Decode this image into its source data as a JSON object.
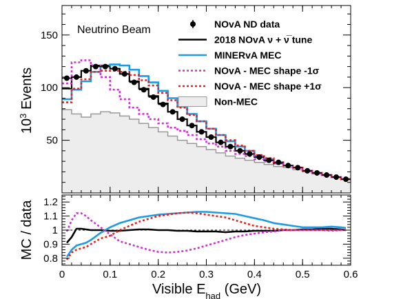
{
  "chart_data": [
    {
      "type": "line",
      "panel": "top",
      "annotation": "Neutrino Beam",
      "xlabel": "",
      "ylabel_base": "10",
      "ylabel_exp": "3",
      "ylabel_rest": " Events",
      "xlim": [
        0,
        0.6
      ],
      "ylim": [
        0,
        178
      ],
      "xticks": [
        0,
        0.1,
        0.2,
        0.3,
        0.4,
        0.5,
        0.6
      ],
      "yticks": [
        50,
        100,
        150
      ],
      "ytick_labels": [
        "50",
        "100",
        "150"
      ],
      "bin_edges": [
        0,
        0.02,
        0.04,
        0.06,
        0.08,
        0.1,
        0.12,
        0.14,
        0.16,
        0.18,
        0.2,
        0.22,
        0.24,
        0.26,
        0.28,
        0.3,
        0.32,
        0.34,
        0.36,
        0.38,
        0.4,
        0.42,
        0.44,
        0.46,
        0.48,
        0.5,
        0.52,
        0.54,
        0.56,
        0.58,
        0.6
      ],
      "legend": [
        {
          "label": "NOvA ND data",
          "style": "marker",
          "color": "#000000"
        },
        {
          "label": "2018 NOvA  ν + ν̅ tune",
          "style": "line",
          "color": "#000000"
        },
        {
          "label": "MINERvA MEC",
          "style": "line",
          "color": "#1a9be6"
        },
        {
          "label": "NOvA - MEC shape -1σ",
          "style": "dotted",
          "color": "#cc33cc"
        },
        {
          "label": "NOvA - MEC shape +1σ",
          "style": "dotted",
          "color": "#e62020"
        },
        {
          "label": "Non-MEC",
          "style": "fill",
          "color": "#ededed"
        }
      ],
      "series": [
        {
          "name": "NOvA ND data",
          "kind": "points",
          "color": "#000000",
          "x": [
            0.01,
            0.03,
            0.05,
            0.07,
            0.09,
            0.11,
            0.13,
            0.15,
            0.17,
            0.19,
            0.21,
            0.23,
            0.25,
            0.27,
            0.29,
            0.31,
            0.33,
            0.35,
            0.37,
            0.39,
            0.41,
            0.43,
            0.45,
            0.47,
            0.49,
            0.51,
            0.53,
            0.55,
            0.57,
            0.59
          ],
          "values": [
            109,
            110,
            116,
            120,
            120,
            118,
            113,
            105,
            98,
            91,
            84,
            77,
            70,
            64,
            58,
            53,
            48,
            44,
            40,
            37,
            34,
            31,
            29,
            26,
            24,
            21,
            19,
            17,
            15,
            13
          ]
        },
        {
          "name": "2018 NOvA  ν + ν̅ tune",
          "kind": "step",
          "color": "#000000",
          "values": [
            99,
            110,
            116,
            121,
            121,
            118,
            113,
            106,
            99,
            92,
            85,
            77,
            70,
            64,
            58,
            53,
            48,
            44,
            40,
            37,
            34,
            31,
            28,
            26,
            24,
            21,
            19,
            17,
            15,
            13
          ]
        },
        {
          "name": "MINERvA MEC",
          "kind": "step",
          "color": "#1a9be6",
          "values": [
            89,
            98,
            106,
            115,
            120,
            122,
            121,
            117,
            111,
            105,
            97,
            90,
            82,
            75,
            68,
            61,
            55,
            49,
            44,
            40,
            35,
            32,
            29,
            26,
            24,
            21,
            19,
            17,
            15,
            13
          ]
        },
        {
          "name": "NOvA - MEC shape -1σ",
          "kind": "dotted-step",
          "color": "#cc33cc",
          "values": [
            104,
            124,
            126,
            121,
            110,
            98,
            89,
            81,
            75,
            70,
            66,
            62,
            59,
            55,
            51,
            47,
            44,
            40,
            37,
            35,
            32,
            30,
            28,
            26,
            24,
            21,
            19,
            17,
            15,
            13
          ]
        },
        {
          "name": "NOvA - MEC shape +1σ",
          "kind": "dotted-step",
          "color": "#e62020",
          "values": [
            86,
            99,
            108,
            115,
            116,
            116,
            115,
            112,
            107,
            102,
            95,
            88,
            81,
            74,
            68,
            61,
            55,
            50,
            45,
            40,
            36,
            33,
            29,
            26,
            24,
            21,
            19,
            17,
            15,
            13
          ]
        },
        {
          "name": "Non-MEC",
          "kind": "filled-step",
          "color": "#ededed",
          "edge": "#999999",
          "values": [
            79,
            75,
            72,
            75,
            77,
            76,
            73,
            70,
            66,
            62,
            58,
            54,
            50,
            47,
            44,
            41,
            38,
            35,
            33,
            31,
            29,
            27,
            25,
            24,
            22,
            20,
            18,
            17,
            15,
            13
          ]
        }
      ]
    },
    {
      "type": "line",
      "panel": "ratio",
      "xlabel_base": "Visible E",
      "xlabel_sub": "had",
      "xlabel_rest": " (GeV)",
      "ylabel": "MC / data",
      "xlim": [
        0,
        0.6
      ],
      "ylim": [
        0.75,
        1.25
      ],
      "xticks": [
        0,
        0.1,
        0.2,
        0.3,
        0.4,
        0.5,
        0.6
      ],
      "xtick_labels": [
        "0",
        "0.1",
        "0.2",
        "0.3",
        "0.4",
        "0.5",
        "0.6"
      ],
      "yticks": [
        0.8,
        0.9,
        1.0,
        1.1,
        1.2
      ],
      "ytick_labels": [
        "0.8",
        "0.9",
        "1",
        "1.1",
        "1.2"
      ],
      "reference": 1.0,
      "x": [
        0.01,
        0.02,
        0.03,
        0.04,
        0.05,
        0.06,
        0.08,
        0.1,
        0.12,
        0.14,
        0.16,
        0.18,
        0.2,
        0.22,
        0.24,
        0.26,
        0.28,
        0.3,
        0.32,
        0.34,
        0.36,
        0.38,
        0.4,
        0.42,
        0.44,
        0.46,
        0.48,
        0.5,
        0.52,
        0.54,
        0.56,
        0.58,
        0.59
      ],
      "series": [
        {
          "name": "2018 NOvA  ν + ν̅ tune",
          "style": "solid",
          "color": "#000000",
          "values": [
            0.91,
            0.95,
            1.01,
            1.01,
            1.005,
            1.0,
            1.0,
            0.995,
            0.995,
            1.0,
            1.005,
            1.005,
            1.0,
            1.0,
            0.995,
            0.995,
            0.99,
            0.99,
            0.99,
            0.985,
            0.99,
            0.99,
            0.995,
            0.995,
            0.995,
            1.0,
            1.0,
            1.005,
            1.005,
            1.01,
            1.01,
            1.005,
            1.0
          ]
        },
        {
          "name": "MINERvA MEC",
          "style": "solid",
          "color": "#1a9be6",
          "values": [
            0.81,
            0.86,
            0.89,
            0.9,
            0.91,
            0.93,
            0.98,
            1.02,
            1.05,
            1.07,
            1.09,
            1.1,
            1.11,
            1.115,
            1.12,
            1.125,
            1.13,
            1.13,
            1.125,
            1.12,
            1.115,
            1.1,
            1.085,
            1.07,
            1.05,
            1.04,
            1.03,
            1.02,
            1.02,
            1.02,
            1.025,
            1.02,
            1.015
          ]
        },
        {
          "name": "NOvA - MEC shape -1σ",
          "style": "dotted",
          "color": "#cc33cc",
          "values": [
            0.99,
            1.07,
            1.12,
            1.12,
            1.1,
            1.07,
            1.02,
            0.97,
            0.92,
            0.9,
            0.88,
            0.86,
            0.845,
            0.84,
            0.845,
            0.855,
            0.87,
            0.89,
            0.91,
            0.93,
            0.95,
            0.965,
            0.975,
            0.985,
            0.99,
            1.0,
            1.0,
            1.0,
            1.0,
            1.0,
            0.995,
            1.0,
            1.0
          ]
        },
        {
          "name": "NOvA - MEC shape +1σ",
          "style": "dotted",
          "color": "#e62020",
          "values": [
            0.79,
            0.84,
            0.86,
            0.87,
            0.88,
            0.9,
            0.94,
            0.96,
            1.0,
            1.03,
            1.06,
            1.08,
            1.1,
            1.11,
            1.12,
            1.125,
            1.12,
            1.11,
            1.1,
            1.09,
            1.07,
            1.05,
            1.03,
            1.02,
            1.01,
            1.005,
            1.0,
            1.0,
            1.0,
            1.0,
            1.0,
            1.0,
            1.0
          ]
        }
      ]
    }
  ]
}
